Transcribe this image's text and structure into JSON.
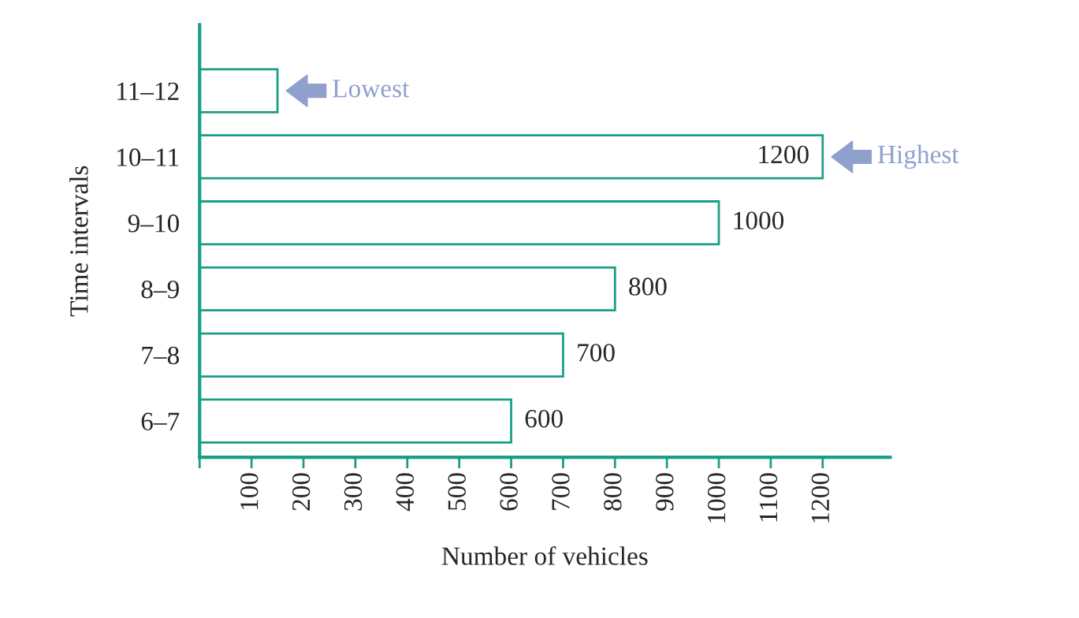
{
  "chart_data": {
    "type": "bar",
    "orientation": "horizontal",
    "xlabel": "Number of vehicles",
    "ylabel": "Time intervals",
    "categories": [
      "11–12",
      "10–11",
      "9–10",
      "8–9",
      "7–8",
      "6–7"
    ],
    "values": [
      150,
      1200,
      1000,
      800,
      700,
      600
    ],
    "value_labels": [
      null,
      "1200",
      "1000",
      "800",
      "700",
      "600"
    ],
    "color": "#1a9e86",
    "xlim": [
      0,
      1330
    ],
    "xticks": [
      {
        "value": 0,
        "label": null
      },
      100,
      200,
      300,
      400,
      500,
      600,
      700,
      800,
      900,
      1000,
      1100,
      1200
    ],
    "grid": false,
    "annotations": [
      {
        "text": "Lowest",
        "x": 150,
        "y": "11–12"
      },
      {
        "text": "Highest",
        "x": 1200,
        "y": "10–11"
      }
    ]
  }
}
